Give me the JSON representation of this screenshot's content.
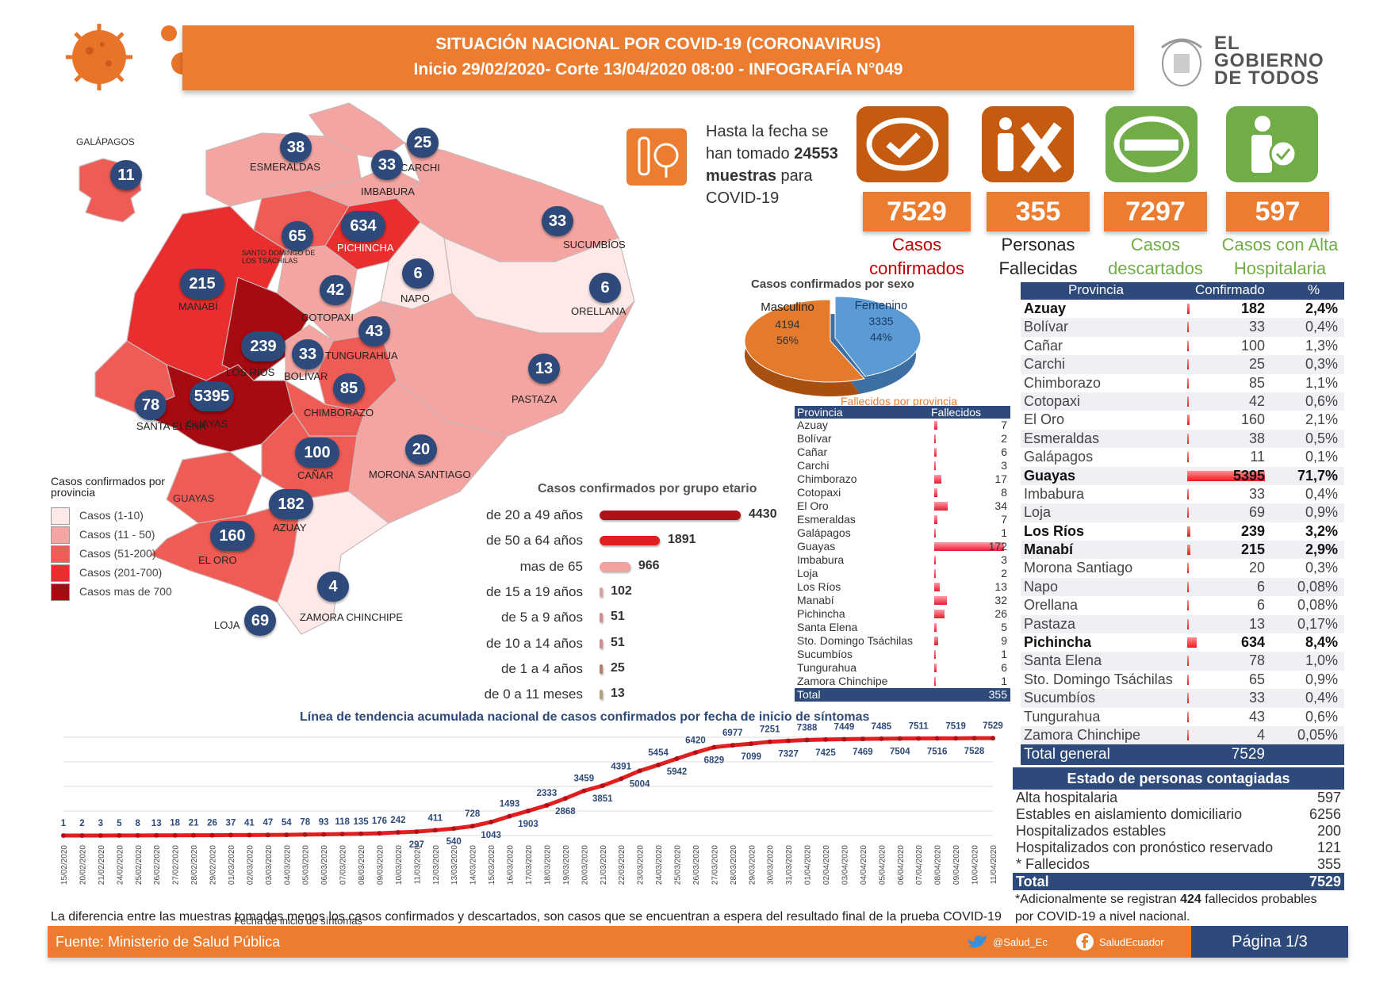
{
  "header": {
    "title": "SITUACIÓN NACIONAL POR  COVID-19 (CORONAVIRUS)",
    "subtitle": "Inicio 29/02/2020- Corte 13/04/2020 08:00  - INFOGRAFÍA N°049"
  },
  "logo": {
    "line1": "EL",
    "line2": "GOBIERNO",
    "line3": "DE TODOS"
  },
  "samples": {
    "pre": "Hasta la fecha se han tomado ",
    "count": "24553",
    "unit": "muestras",
    "post": " para COVID-19"
  },
  "stats": [
    {
      "value": "7529",
      "label1": "Casos",
      "label2": "confirmados",
      "color": "#c55a11",
      "label_color": "#c00000"
    },
    {
      "value": "355",
      "label1": "Personas",
      "label2": "Fallecidas",
      "color": "#c55a11",
      "label_color": "#222222"
    },
    {
      "value": "7297",
      "label1": "Casos",
      "label2": "descartados",
      "color": "#70ad47",
      "label_color": "#70ad47"
    },
    {
      "value": "597",
      "label1": "Casos con Alta",
      "label2": "Hospitalaria",
      "color": "#70ad47",
      "label_color": "#70ad47"
    }
  ],
  "map": {
    "galapagos_title": "GALÁPAGOS",
    "provinces": [
      {
        "name": "GALÁPAGOS",
        "value": "11"
      },
      {
        "name": "ESMERALDAS",
        "value": "38"
      },
      {
        "name": "CARCHI",
        "value": "25"
      },
      {
        "name": "IMBABURA",
        "value": "33"
      },
      {
        "name": "PICHINCHA",
        "value": "634"
      },
      {
        "name": "SANTO DOMINGO DE LOS TSÁCHILAS",
        "value": "65"
      },
      {
        "name": "SUCUMBÍOS",
        "value": "33"
      },
      {
        "name": "NAPO",
        "value": "6"
      },
      {
        "name": "ORELLANA",
        "value": "6"
      },
      {
        "name": "MANABÍ",
        "value": "215"
      },
      {
        "name": "COTOPAXI",
        "value": "42"
      },
      {
        "name": "TUNGURAHUA",
        "value": "43"
      },
      {
        "name": "LOS RÍOS",
        "value": "239"
      },
      {
        "name": "BOLÍVAR",
        "value": "33"
      },
      {
        "name": "PASTAZA",
        "value": "13"
      },
      {
        "name": "CHIMBORAZO",
        "value": "85"
      },
      {
        "name": "SANTA ELENA",
        "value": "78"
      },
      {
        "name": "GUAYAS",
        "value": "5395"
      },
      {
        "name": "CAÑAR",
        "value": "100"
      },
      {
        "name": "MORONA SANTIAGO",
        "value": "20"
      },
      {
        "name": "AZUAY",
        "value": "182"
      },
      {
        "name": "EL ORO",
        "value": "160"
      },
      {
        "name": "ZAMORA CHINCHIPE",
        "value": "4"
      },
      {
        "name": "LOJA",
        "value": "69"
      }
    ],
    "guayas_label2": "GUAYAS",
    "legend_title": "Casos confirmados por provincia",
    "legend": [
      {
        "label": "Casos (1-10)",
        "color": "#fde9e7"
      },
      {
        "label": "Casos (11 - 50)",
        "color": "#f4a5a1"
      },
      {
        "label": "Casos (51-200)",
        "color": "#ef5b55"
      },
      {
        "label": "Casos (201-700)",
        "color": "#e82e2e"
      },
      {
        "label": "Casos mas de 700",
        "color": "#a50b10"
      }
    ]
  },
  "sex_chart": {
    "title": "Casos confirmados por sexo",
    "slices": [
      {
        "label": "Masculino",
        "value": 4194,
        "value_text": "4194",
        "pct": "56%",
        "color": "#e47a2b"
      },
      {
        "label": "Femenino",
        "value": 3335,
        "value_text": "3335",
        "pct": "44%",
        "color": "#5b9bd5"
      }
    ]
  },
  "deaths_table": {
    "title": "Fallecidos por provincia",
    "col1": "Provincia",
    "col2": "Fallecidos",
    "rows": [
      {
        "name": "Azuay",
        "value": "7"
      },
      {
        "name": "Bolívar",
        "value": "2"
      },
      {
        "name": "Cañar",
        "value": "6"
      },
      {
        "name": "Carchi",
        "value": "3"
      },
      {
        "name": "Chimborazo",
        "value": "17"
      },
      {
        "name": "Cotopaxi",
        "value": "8"
      },
      {
        "name": "El Oro",
        "value": "34"
      },
      {
        "name": "Esmeraldas",
        "value": "7"
      },
      {
        "name": "Galápagos",
        "value": "1"
      },
      {
        "name": "Guayas",
        "value": "172"
      },
      {
        "name": "Imbabura",
        "value": "3"
      },
      {
        "name": "Loja",
        "value": "2"
      },
      {
        "name": "Los Ríos",
        "value": "13"
      },
      {
        "name": "Manabí",
        "value": "32"
      },
      {
        "name": "Pichincha",
        "value": "26"
      },
      {
        "name": "Santa Elena",
        "value": "5"
      },
      {
        "name": "Sto. Domingo Tsáchilas",
        "value": "9"
      },
      {
        "name": "Sucumbíos",
        "value": "1"
      },
      {
        "name": "Tungurahua",
        "value": "6"
      },
      {
        "name": "Zamora Chinchipe",
        "value": "1"
      }
    ],
    "total_label": "Total",
    "total_value": "355"
  },
  "province_table": {
    "col1": "Provincia",
    "col2": "Confirmado",
    "col3": "%",
    "rows": [
      {
        "name": "Azuay",
        "value": "182",
        "pct": "2,4%",
        "bold": true
      },
      {
        "name": "Bolívar",
        "value": "33",
        "pct": "0,4%",
        "bold": false
      },
      {
        "name": "Cañar",
        "value": "100",
        "pct": "1,3%",
        "bold": false
      },
      {
        "name": "Carchi",
        "value": "25",
        "pct": "0,3%",
        "bold": false
      },
      {
        "name": "Chimborazo",
        "value": "85",
        "pct": "1,1%",
        "bold": false
      },
      {
        "name": "Cotopaxi",
        "value": "42",
        "pct": "0,6%",
        "bold": false
      },
      {
        "name": "El Oro",
        "value": "160",
        "pct": "2,1%",
        "bold": false
      },
      {
        "name": "Esmeraldas",
        "value": "38",
        "pct": "0,5%",
        "bold": false
      },
      {
        "name": "Galápagos",
        "value": "11",
        "pct": "0,1%",
        "bold": false
      },
      {
        "name": "Guayas",
        "value": "5395",
        "pct": "71,7%",
        "bold": true
      },
      {
        "name": "Imbabura",
        "value": "33",
        "pct": "0,4%",
        "bold": false
      },
      {
        "name": "Loja",
        "value": "69",
        "pct": "0,9%",
        "bold": false
      },
      {
        "name": "Los Ríos",
        "value": "239",
        "pct": "3,2%",
        "bold": true
      },
      {
        "name": "Manabí",
        "value": "215",
        "pct": "2,9%",
        "bold": true
      },
      {
        "name": "Morona Santiago",
        "value": "20",
        "pct": "0,3%",
        "bold": false
      },
      {
        "name": "Napo",
        "value": "6",
        "pct": "0,08%",
        "bold": false
      },
      {
        "name": "Orellana",
        "value": "6",
        "pct": "0,08%",
        "bold": false
      },
      {
        "name": "Pastaza",
        "value": "13",
        "pct": "0,17%",
        "bold": false
      },
      {
        "name": "Pichincha",
        "value": "634",
        "pct": "8,4%",
        "bold": true
      },
      {
        "name": "Santa Elena",
        "value": "78",
        "pct": "1,0%",
        "bold": false
      },
      {
        "name": "Sto. Domingo Tsáchilas",
        "value": "65",
        "pct": "0,9%",
        "bold": false
      },
      {
        "name": "Sucumbíos",
        "value": "33",
        "pct": "0,4%",
        "bold": false
      },
      {
        "name": "Tungurahua",
        "value": "43",
        "pct": "0,6%",
        "bold": false
      },
      {
        "name": "Zamora Chinchipe",
        "value": "4",
        "pct": "0,05%",
        "bold": false
      }
    ],
    "total_label": "Total general",
    "total_value": "7529"
  },
  "age_chart": {
    "title": "Casos confirmados por grupo etario",
    "rows": [
      {
        "label": "de 20 a 49 años",
        "value": 4430,
        "value_text": "4430",
        "color": "#b01018"
      },
      {
        "label": "de 50 a 64 años",
        "value": 1891,
        "value_text": "1891",
        "color": "#e02020"
      },
      {
        "label": "mas de 65",
        "value": 966,
        "value_text": "966",
        "color": "#f2a0a0"
      },
      {
        "label": "de 15 a 19 años",
        "value": 102,
        "value_text": "102",
        "color": "#d9a3a3"
      },
      {
        "label": "de 5 a 9 años",
        "value": 51,
        "value_text": "51",
        "color": "#c89090"
      },
      {
        "label": "de 10 a 14 años",
        "value": 51,
        "value_text": "51",
        "color": "#c89090"
      },
      {
        "label": "de 1 a 4 años",
        "value": 25,
        "value_text": "25",
        "color": "#b08070"
      },
      {
        "label": "de 0 a 11 meses",
        "value": 13,
        "value_text": "13",
        "color": "#b0a080"
      }
    ]
  },
  "chart_data": {
    "type": "line",
    "title": "Línea de tendencia acumulada nacional de casos confirmados por fecha de inicio de síntomas",
    "xlabel": "Fecha de inicio de síntomas",
    "x": [
      "15/02/2020",
      "20/02/2020",
      "21/02/2020",
      "24/02/2020",
      "25/02/2020",
      "26/02/2020",
      "27/02/2020",
      "28/02/2020",
      "29/02/2020",
      "01/03/2020",
      "02/03/2020",
      "03/03/2020",
      "04/03/2020",
      "05/03/2020",
      "06/03/2020",
      "07/03/2020",
      "08/03/2020",
      "09/03/2020",
      "10/03/2020",
      "11/03/2020",
      "12/03/2020",
      "13/03/2020",
      "14/03/2020",
      "15/03/2020",
      "16/03/2020",
      "17/03/2020",
      "18/03/2020",
      "19/03/2020",
      "20/03/2020",
      "21/03/2020",
      "22/03/2020",
      "23/03/2020",
      "24/03/2020",
      "25/03/2020",
      "26/03/2020",
      "27/03/2020",
      "28/03/2020",
      "29/03/2020",
      "30/03/2020",
      "31/03/2020",
      "01/04/2020",
      "02/04/2020",
      "03/04/2020",
      "04/04/2020",
      "05/04/2020",
      "06/04/2020",
      "07/04/2020",
      "08/04/2020",
      "09/04/2020",
      "10/04/2020",
      "11/04/2020"
    ],
    "values": [
      1,
      2,
      3,
      5,
      8,
      13,
      18,
      21,
      26,
      37,
      41,
      47,
      54,
      78,
      93,
      118,
      135,
      176,
      242,
      297,
      411,
      540,
      728,
      1043,
      1493,
      1903,
      2333,
      2868,
      3459,
      3851,
      4391,
      5004,
      5454,
      5942,
      6420,
      6829,
      6977,
      7099,
      7251,
      7327,
      7388,
      7425,
      7449,
      7469,
      7485,
      7504,
      7511,
      7516,
      7519,
      7528,
      7529
    ],
    "ylim": [
      0,
      7600
    ],
    "grid": true,
    "color": "#e02020"
  },
  "state_table": {
    "title": "Estado de personas contagiadas",
    "rows": [
      {
        "label": "Alta hospitalaria",
        "value": "597"
      },
      {
        "label": "Estables en aislamiento domiciliario",
        "value": "6256"
      },
      {
        "label": "Hospitalizados estables",
        "value": "200"
      },
      {
        "label": "Hospitalizados con pronóstico reservado",
        "value": "121"
      },
      {
        "label": "* Fallecidos",
        "value": "355"
      }
    ],
    "total_label": "Total",
    "total_value": "7529"
  },
  "note": {
    "pre": "*Adicionalmente se registran ",
    "num": "424",
    "post": " fallecidos probables por COVID-19 a nivel nacional."
  },
  "diff_note": "La diferencia entre las muestras tomadas menos los casos confirmados y descartados, son casos que se encuentran a espera del resultado final de la prueba COVID-19",
  "footer": {
    "source_label": "Fuente:",
    "source": "Ministerio de Salud Pública",
    "twitter": "@Salud_Ec",
    "facebook": "SaludEcuador",
    "page": "Página 1/3"
  }
}
